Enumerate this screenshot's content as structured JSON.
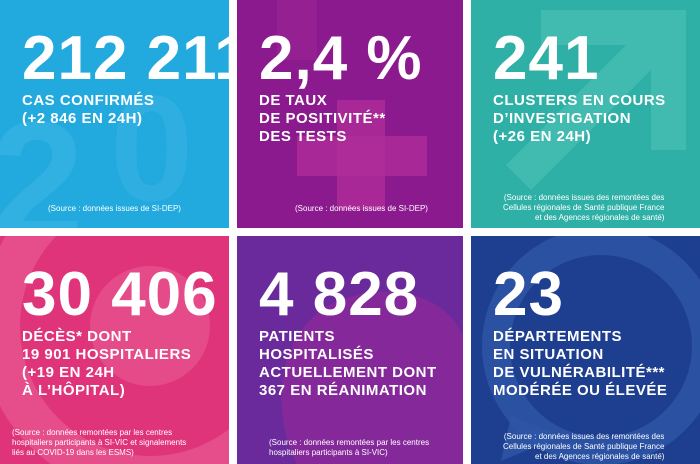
{
  "colors": {
    "cas": "#22a9de",
    "positivite": "#8a1a8d",
    "clusters": "#2fb0a6",
    "deces": "#e0347a",
    "hospitalises": "#6a2a9c",
    "departements": "#1e3f8f"
  },
  "tiles": [
    {
      "value": "212 211",
      "lines": [
        "CAS CONFIRMÉS",
        "(+2 846 EN 24H)"
      ],
      "source": [
        "(Source : données issues de SI-DEP)"
      ]
    },
    {
      "value": "2,4 %",
      "lines": [
        "DE TAUX",
        "DE POSITIVITÉ**",
        "DES TESTS"
      ],
      "source": [
        "(Source : données issues de SI-DEP)"
      ]
    },
    {
      "value": "241",
      "lines": [
        "CLUSTERS EN COURS",
        "D’INVESTIGATION",
        "(+26 EN 24H)"
      ],
      "source": [
        "(Source : données issues des remontées des",
        "Cellules régionales de Santé publique France",
        "et des Agences régionales de santé)"
      ]
    },
    {
      "value": "30 406",
      "lines": [
        "DÉCÈS* DONT",
        "19 901 HOSPITALIERS",
        "(+19 EN 24H",
        "À L’HÔPITAL)"
      ],
      "source": [
        "(Source : données remontées par les centres",
        "hospitaliers participants à SI-VIC et signalements",
        "liés au COVID-19 dans les ESMS)"
      ]
    },
    {
      "value": "4 828",
      "lines": [
        "PATIENTS",
        "HOSPITALISÉS",
        "ACTUELLEMENT DONT",
        "367 EN RÉANIMATION"
      ],
      "source": [
        "(Source : données remontées par les centres",
        "hospitaliers participants à SI-VIC)"
      ]
    },
    {
      "value": "23",
      "lines": [
        "DÉPARTEMENTS",
        "EN SITUATION",
        "DE VULNÉRABILITÉ***",
        "MODÉRÉE OU ÉLEVÉE"
      ],
      "source": [
        "(Source : données issues des remontées des",
        "Cellules régionales de Santé publique France",
        "et des Agences régionales de santé)"
      ]
    }
  ]
}
